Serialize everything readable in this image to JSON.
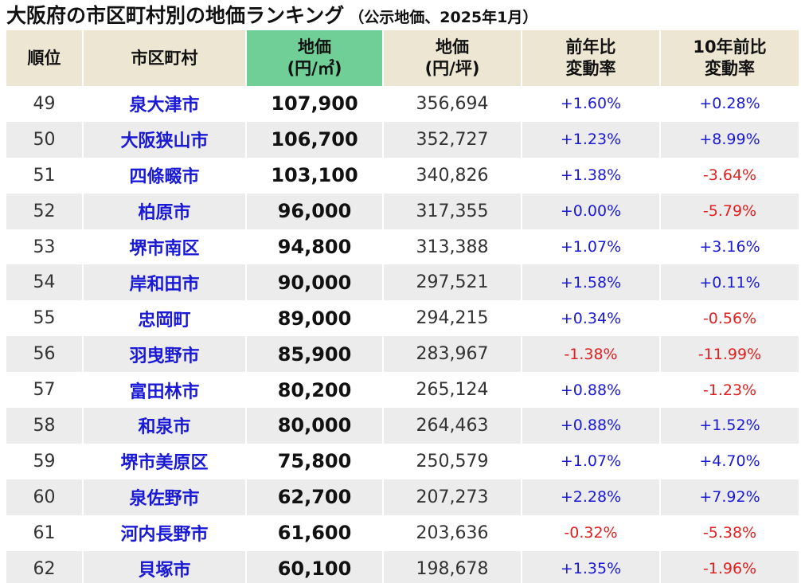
{
  "title": {
    "main": "大阪府の市区町村別の地価ランキング",
    "sub": "（公示地価、2025年1月）"
  },
  "headers": {
    "rank": "順位",
    "city": "市区町村",
    "price_l1": "地価",
    "price_l2": "(円/㎡)",
    "tsubo_l1": "地価",
    "tsubo_l2": "(円/坪)",
    "yoy_l1": "前年比",
    "yoy_l2": "変動率",
    "ten_l1": "10年前比",
    "ten_l2": "変動率"
  },
  "colors": {
    "highlight_header": "#6fcf97",
    "header_bg": "#ece6d2",
    "positive": "#1a1ad6",
    "negative": "#e02020"
  },
  "rows": [
    {
      "rank": "49",
      "city": "泉大津市",
      "price": "107,900",
      "tsubo": "356,694",
      "yoy": "+1.60%",
      "yoy_sign": "pos",
      "ten": "+0.28%",
      "ten_sign": "pos"
    },
    {
      "rank": "50",
      "city": "大阪狭山市",
      "price": "106,700",
      "tsubo": "352,727",
      "yoy": "+1.23%",
      "yoy_sign": "pos",
      "ten": "+8.99%",
      "ten_sign": "pos"
    },
    {
      "rank": "51",
      "city": "四條畷市",
      "price": "103,100",
      "tsubo": "340,826",
      "yoy": "+1.38%",
      "yoy_sign": "pos",
      "ten": "-3.64%",
      "ten_sign": "neg"
    },
    {
      "rank": "52",
      "city": "柏原市",
      "price": "96,000",
      "tsubo": "317,355",
      "yoy": "+0.00%",
      "yoy_sign": "pos",
      "ten": "-5.79%",
      "ten_sign": "neg"
    },
    {
      "rank": "53",
      "city": "堺市南区",
      "price": "94,800",
      "tsubo": "313,388",
      "yoy": "+1.07%",
      "yoy_sign": "pos",
      "ten": "+3.16%",
      "ten_sign": "pos"
    },
    {
      "rank": "54",
      "city": "岸和田市",
      "price": "90,000",
      "tsubo": "297,521",
      "yoy": "+1.58%",
      "yoy_sign": "pos",
      "ten": "+0.11%",
      "ten_sign": "pos"
    },
    {
      "rank": "55",
      "city": "忠岡町",
      "price": "89,000",
      "tsubo": "294,215",
      "yoy": "+0.34%",
      "yoy_sign": "pos",
      "ten": "-0.56%",
      "ten_sign": "neg"
    },
    {
      "rank": "56",
      "city": "羽曳野市",
      "price": "85,900",
      "tsubo": "283,967",
      "yoy": "-1.38%",
      "yoy_sign": "neg",
      "ten": "-11.99%",
      "ten_sign": "neg"
    },
    {
      "rank": "57",
      "city": "富田林市",
      "price": "80,200",
      "tsubo": "265,124",
      "yoy": "+0.88%",
      "yoy_sign": "pos",
      "ten": "-1.23%",
      "ten_sign": "neg"
    },
    {
      "rank": "58",
      "city": "和泉市",
      "price": "80,000",
      "tsubo": "264,463",
      "yoy": "+0.88%",
      "yoy_sign": "pos",
      "ten": "+1.52%",
      "ten_sign": "pos"
    },
    {
      "rank": "59",
      "city": "堺市美原区",
      "price": "75,800",
      "tsubo": "250,579",
      "yoy": "+1.07%",
      "yoy_sign": "pos",
      "ten": "+4.70%",
      "ten_sign": "pos"
    },
    {
      "rank": "60",
      "city": "泉佐野市",
      "price": "62,700",
      "tsubo": "207,273",
      "yoy": "+2.28%",
      "yoy_sign": "pos",
      "ten": "+7.92%",
      "ten_sign": "pos"
    },
    {
      "rank": "61",
      "city": "河内長野市",
      "price": "61,600",
      "tsubo": "203,636",
      "yoy": "-0.32%",
      "yoy_sign": "neg",
      "ten": "-5.38%",
      "ten_sign": "neg"
    },
    {
      "rank": "62",
      "city": "貝塚市",
      "price": "60,100",
      "tsubo": "198,678",
      "yoy": "+1.35%",
      "yoy_sign": "pos",
      "ten": "-1.96%",
      "ten_sign": "neg"
    }
  ]
}
